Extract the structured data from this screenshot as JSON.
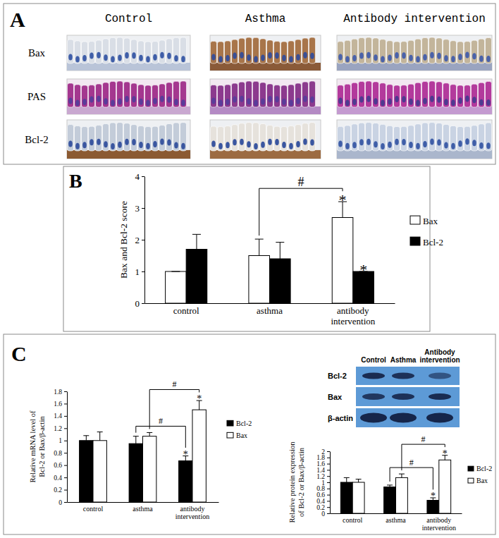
{
  "figure": {
    "panel_letters": [
      "A",
      "B",
      "C"
    ],
    "panel_a": {
      "columns": [
        "Control",
        "Asthma",
        "Antibody intervention"
      ],
      "rows": [
        "Bax",
        "PAS",
        "Bcl-2"
      ]
    },
    "blot": {
      "lanes": [
        "Control",
        "Asthma",
        "Antibody intervention"
      ],
      "bands": [
        "Bcl-2",
        "Bax",
        "β-actin"
      ]
    }
  },
  "chart_data": [
    {
      "type": "bar",
      "y_label": "Bax and Bcl-2 score",
      "categories": [
        "control",
        "asthma",
        "antibody intervention"
      ],
      "series": [
        {
          "name": "Bax",
          "color": "#ffffff",
          "values": [
            1.0,
            1.5,
            2.7
          ],
          "errors": [
            0,
            0.52,
            0.5
          ],
          "significance": [
            null,
            null,
            "*"
          ]
        },
        {
          "name": "Bcl-2",
          "color": "#000000",
          "values": [
            1.7,
            1.4,
            1.0
          ],
          "errors": [
            0.47,
            0.52,
            0
          ],
          "significance": [
            null,
            null,
            "*"
          ]
        }
      ],
      "comparisons": [
        {
          "from": "asthma",
          "to": "antibody intervention",
          "series": "Bax",
          "label": "#"
        }
      ],
      "ylim": [
        0,
        4
      ],
      "yticks": [
        0,
        1,
        2,
        3,
        4
      ],
      "legend": "right"
    },
    {
      "type": "bar",
      "y_label": "Relative mRNA level of Bcl-2 or Bax/β-actin",
      "categories": [
        "control",
        "asthma",
        "antibody intervention"
      ],
      "series": [
        {
          "name": "Bcl-2",
          "color": "#000000",
          "values": [
            1.0,
            0.95,
            0.67
          ],
          "errors": [
            0.08,
            0.12,
            0.08
          ],
          "significance": [
            null,
            null,
            "*"
          ]
        },
        {
          "name": "Bax",
          "color": "#ffffff",
          "values": [
            1.0,
            1.07,
            1.5
          ],
          "errors": [
            0.14,
            0.06,
            0.15
          ],
          "significance": [
            null,
            null,
            "*"
          ]
        }
      ],
      "comparisons": [
        {
          "from": "asthma",
          "to": "antibody intervention",
          "series": "Bcl-2",
          "label": "#"
        },
        {
          "from": "asthma",
          "to": "antibody intervention",
          "series": "Bax",
          "label": "#"
        }
      ],
      "ylim": [
        0,
        1.8
      ],
      "yticks": [
        0,
        0.2,
        0.4,
        0.6,
        0.8,
        1,
        1.2,
        1.4,
        1.6,
        1.8
      ],
      "legend": "right"
    },
    {
      "type": "bar",
      "y_label": "Relative protein expression of Bcl-2 or Bax/β-actin",
      "categories": [
        "control",
        "asthma",
        "antibody intervention"
      ],
      "series": [
        {
          "name": "Bcl-2",
          "color": "#000000",
          "values": [
            1.0,
            0.85,
            0.42
          ],
          "errors": [
            0.15,
            0.06,
            0.08
          ],
          "significance": [
            null,
            null,
            "*"
          ]
        },
        {
          "name": "Bax",
          "color": "#ffffff",
          "values": [
            1.0,
            1.15,
            1.72
          ],
          "errors": [
            0.1,
            0.12,
            0.15
          ],
          "significance": [
            null,
            null,
            "*"
          ]
        }
      ],
      "comparisons": [
        {
          "from": "asthma",
          "to": "antibody intervention",
          "series": "Bcl-2",
          "label": "#"
        },
        {
          "from": "asthma",
          "to": "antibody intervention",
          "series": "Bax",
          "label": "#"
        }
      ],
      "ylim": [
        0,
        2
      ],
      "yticks": [
        0,
        0.2,
        0.4,
        0.6,
        0.8,
        1,
        1.2,
        1.4,
        1.6,
        1.8,
        2
      ],
      "legend": "right"
    }
  ]
}
